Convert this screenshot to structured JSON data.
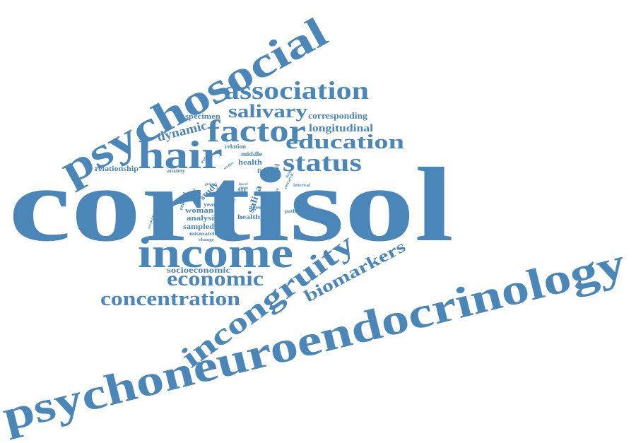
{
  "colors": {
    "word": "#4a86b8",
    "background": "#ffffff"
  },
  "words": {
    "cortisol": "cortisol",
    "psychoneuroendocrinology": "psychoneuroendocrinology",
    "psychosocial": "psychosocial",
    "income": "income",
    "incongruity": "incongruity",
    "hair": "hair",
    "factor": "factor",
    "association": "association",
    "status": "status",
    "education": "education",
    "salivary": "salivary",
    "economic": "economic",
    "concentration": "concentration",
    "biomarkers": "biomarkers",
    "dynamic": "dynamic",
    "longitudinal": "longitudinal",
    "corresponding": "corresponding",
    "specimen": "specimen",
    "socioeconomic": "socioeconomic",
    "relationship": "relationship",
    "anxiety": "anxiety",
    "relation": "relation",
    "middle": "middle",
    "health": "health",
    "finding": "finding",
    "saliva": "saliva",
    "study": "study",
    "woman": "woman",
    "analysis": "analysis",
    "sampled": "sampled",
    "healthy": "healthy",
    "year": "year",
    "aged": "aged",
    "related": "related",
    "level": "level",
    "mismatch": "mismatch",
    "change": "change",
    "pathway": "pathway",
    "interval": "interval",
    "str": "str",
    "research": "research",
    "design": "design",
    "evaluate": "evaluate",
    "student": "student",
    "studies": "studies",
    "higher": "higher",
    "group": "group",
    "lower": "lower",
    "cross": "cross",
    "time": "time",
    "form": "form"
  }
}
